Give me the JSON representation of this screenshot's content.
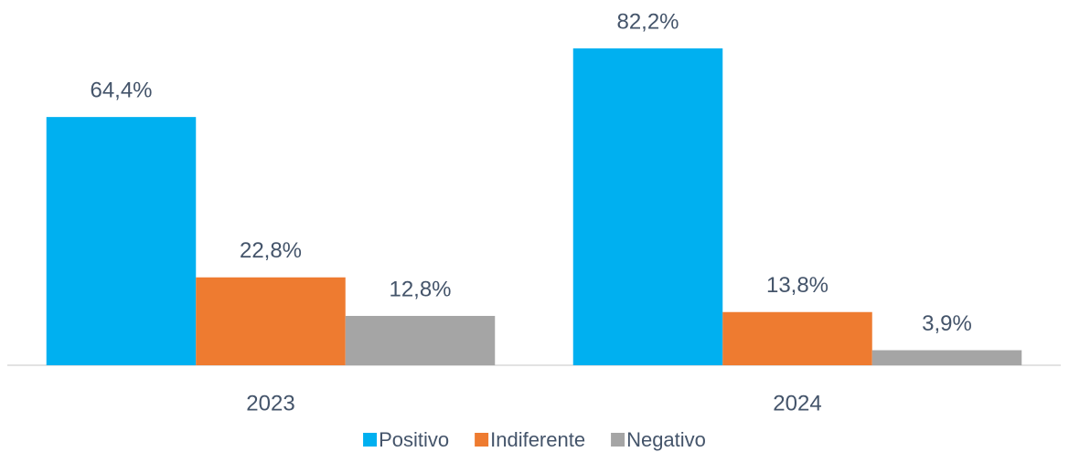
{
  "chart_data": {
    "type": "bar",
    "categories": [
      "2023",
      "2024"
    ],
    "series": [
      {
        "name": "Positivo",
        "color": "#00b0f0",
        "values": [
          64.4,
          82.2
        ],
        "value_labels": [
          "64,4%",
          "82,2%"
        ]
      },
      {
        "name": "Indiferente",
        "color": "#ee7b30",
        "values": [
          22.8,
          13.8
        ],
        "value_labels": [
          "22,8%",
          "13,8%"
        ]
      },
      {
        "name": "Negativo",
        "color": "#a5a5a5",
        "values": [
          12.8,
          3.9
        ],
        "value_labels": [
          "12,8%",
          "3,9%"
        ]
      }
    ],
    "legend": "bottom"
  }
}
